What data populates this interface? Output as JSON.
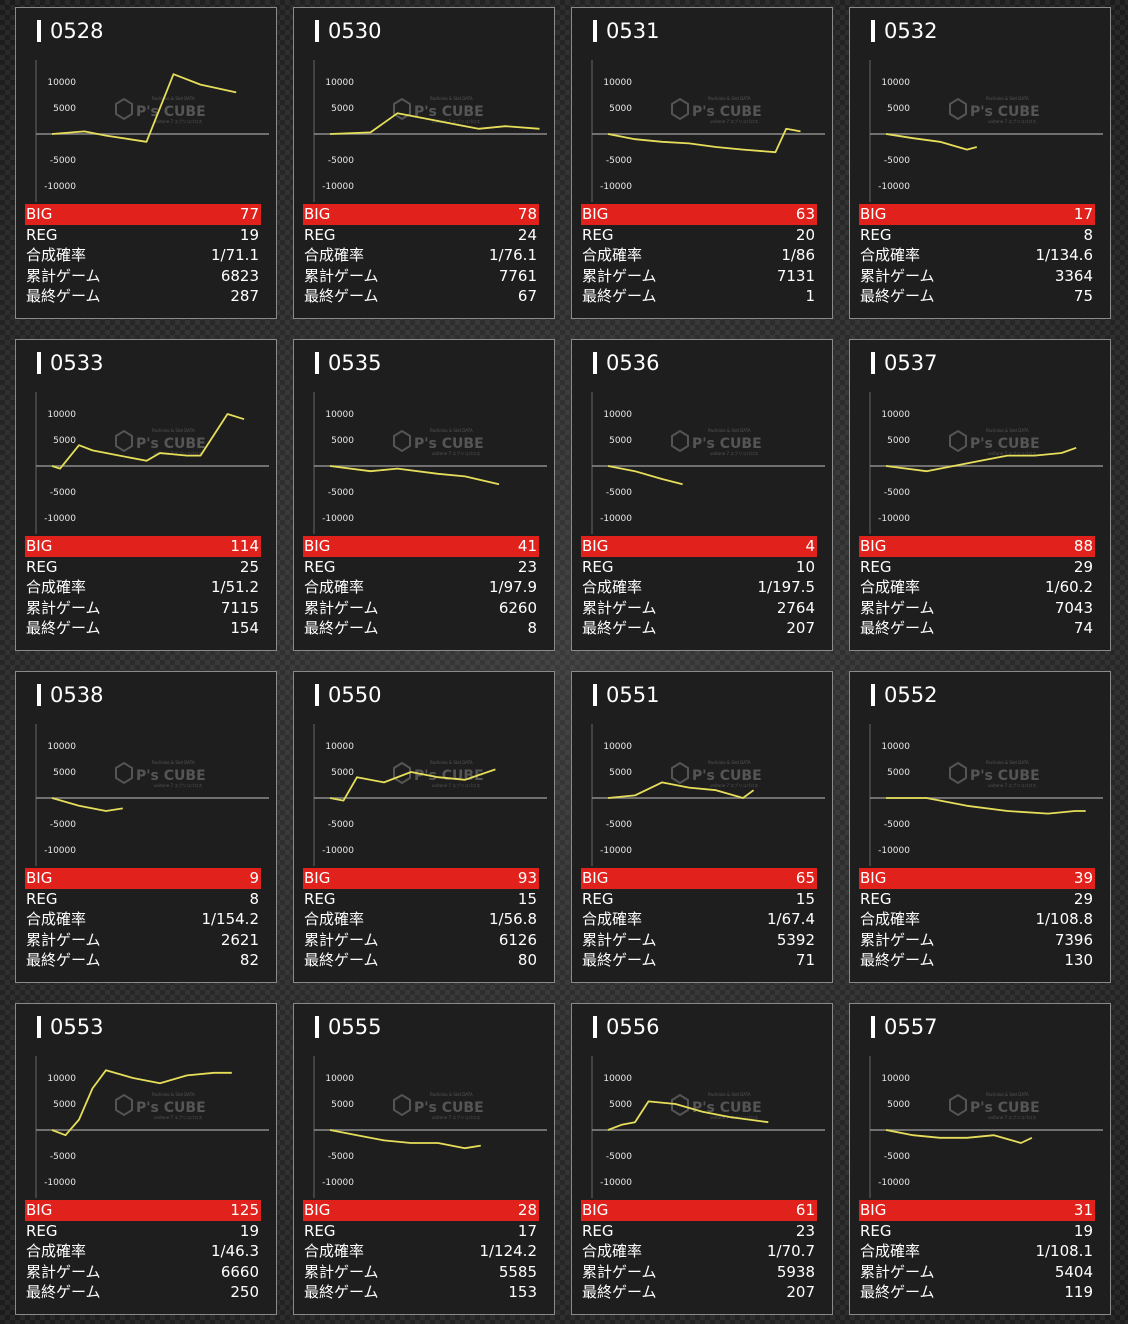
{
  "labels": {
    "big": "BIG",
    "reg": "REG",
    "prob": "合成確率",
    "total": "累計ゲーム",
    "last": "最終ゲーム"
  },
  "yticks": [
    "10000",
    "5000",
    "-5000",
    "-10000"
  ],
  "watermark": {
    "title": "P's CUBE",
    "top": "Pachinko & Slot DATA",
    "bottom": "unitone 7 エブリコパロス"
  },
  "colors": {
    "line": "#e6de5a",
    "big_bar": "#e1211b"
  },
  "machines": [
    {
      "id": "0528",
      "big": "77",
      "reg": "19",
      "prob": "1/71.1",
      "total": "6823",
      "last": "287"
    },
    {
      "id": "0530",
      "big": "78",
      "reg": "24",
      "prob": "1/76.1",
      "total": "7761",
      "last": "67"
    },
    {
      "id": "0531",
      "big": "63",
      "reg": "20",
      "prob": "1/86",
      "total": "7131",
      "last": "1"
    },
    {
      "id": "0532",
      "big": "17",
      "reg": "8",
      "prob": "1/134.6",
      "total": "3364",
      "last": "75"
    },
    {
      "id": "0533",
      "big": "114",
      "reg": "25",
      "prob": "1/51.2",
      "total": "7115",
      "last": "154"
    },
    {
      "id": "0535",
      "big": "41",
      "reg": "23",
      "prob": "1/97.9",
      "total": "6260",
      "last": "8"
    },
    {
      "id": "0536",
      "big": "4",
      "reg": "10",
      "prob": "1/197.5",
      "total": "2764",
      "last": "207"
    },
    {
      "id": "0537",
      "big": "88",
      "reg": "29",
      "prob": "1/60.2",
      "total": "7043",
      "last": "74"
    },
    {
      "id": "0538",
      "big": "9",
      "reg": "8",
      "prob": "1/154.2",
      "total": "2621",
      "last": "82"
    },
    {
      "id": "0550",
      "big": "93",
      "reg": "15",
      "prob": "1/56.8",
      "total": "6126",
      "last": "80"
    },
    {
      "id": "0551",
      "big": "65",
      "reg": "15",
      "prob": "1/67.4",
      "total": "5392",
      "last": "71"
    },
    {
      "id": "0552",
      "big": "39",
      "reg": "29",
      "prob": "1/108.8",
      "total": "7396",
      "last": "130"
    },
    {
      "id": "0553",
      "big": "125",
      "reg": "19",
      "prob": "1/46.3",
      "total": "6660",
      "last": "250"
    },
    {
      "id": "0555",
      "big": "28",
      "reg": "17",
      "prob": "1/124.2",
      "total": "5585",
      "last": "153"
    },
    {
      "id": "0556",
      "big": "61",
      "reg": "23",
      "prob": "1/70.7",
      "total": "5938",
      "last": "207"
    },
    {
      "id": "0557",
      "big": "31",
      "reg": "19",
      "prob": "1/108.1",
      "total": "5404",
      "last": "119"
    }
  ],
  "chart_data": [
    {
      "type": "line",
      "title": "0528",
      "ylim": [
        -13000,
        13000
      ],
      "x": [
        0,
        1200,
        2000,
        3500,
        4500,
        5500,
        6823
      ],
      "y": [
        0,
        500,
        -300,
        -1500,
        11500,
        9500,
        8000
      ]
    },
    {
      "type": "line",
      "title": "0530",
      "ylim": [
        -13000,
        13000
      ],
      "x": [
        0,
        1500,
        2500,
        3500,
        4500,
        5500,
        6500,
        7761
      ],
      "y": [
        0,
        300,
        4000,
        3000,
        2000,
        1000,
        1500,
        1000
      ]
    },
    {
      "type": "line",
      "title": "0531",
      "ylim": [
        -13000,
        13000
      ],
      "x": [
        0,
        1000,
        2000,
        3000,
        4000,
        5000,
        6200,
        6600,
        7131
      ],
      "y": [
        0,
        -1000,
        -1500,
        -1800,
        -2500,
        -3000,
        -3500,
        1000,
        500
      ]
    },
    {
      "type": "line",
      "title": "0532",
      "ylim": [
        -13000,
        13000
      ],
      "x": [
        0,
        1000,
        2000,
        3000,
        3364
      ],
      "y": [
        0,
        -800,
        -1500,
        -3000,
        -2500
      ]
    },
    {
      "type": "line",
      "title": "0533",
      "ylim": [
        -13000,
        13000
      ],
      "x": [
        0,
        300,
        1000,
        1500,
        2500,
        3500,
        4000,
        5000,
        5500,
        6500,
        7115
      ],
      "y": [
        0,
        -500,
        4000,
        3000,
        2000,
        1000,
        2500,
        2000,
        2000,
        10000,
        9000
      ]
    },
    {
      "type": "line",
      "title": "0535",
      "ylim": [
        -13000,
        13000
      ],
      "x": [
        0,
        1500,
        2500,
        4000,
        5000,
        6260
      ],
      "y": [
        0,
        -1000,
        -500,
        -1500,
        -2000,
        -3500
      ]
    },
    {
      "type": "line",
      "title": "0536",
      "ylim": [
        -13000,
        13000
      ],
      "x": [
        0,
        1000,
        2000,
        2764
      ],
      "y": [
        0,
        -1000,
        -2500,
        -3500
      ]
    },
    {
      "type": "line",
      "title": "0537",
      "ylim": [
        -13000,
        13000
      ],
      "x": [
        0,
        1500,
        2500,
        3500,
        4500,
        5500,
        6500,
        7043
      ],
      "y": [
        0,
        -1000,
        0,
        1000,
        2000,
        2000,
        2500,
        3500
      ]
    },
    {
      "type": "line",
      "title": "0538",
      "ylim": [
        -13000,
        13000
      ],
      "x": [
        0,
        1000,
        2000,
        2621
      ],
      "y": [
        0,
        -1500,
        -2500,
        -2000
      ]
    },
    {
      "type": "line",
      "title": "0550",
      "ylim": [
        -13000,
        13000
      ],
      "x": [
        0,
        500,
        1000,
        2000,
        3000,
        4000,
        5000,
        6126
      ],
      "y": [
        0,
        -500,
        4000,
        3000,
        5000,
        4000,
        3500,
        5500
      ]
    },
    {
      "type": "line",
      "title": "0551",
      "ylim": [
        -13000,
        13000
      ],
      "x": [
        0,
        1000,
        2000,
        3000,
        4000,
        5000,
        5392
      ],
      "y": [
        0,
        500,
        3000,
        2000,
        1500,
        0,
        1500
      ]
    },
    {
      "type": "line",
      "title": "0552",
      "ylim": [
        -13000,
        13000
      ],
      "x": [
        0,
        1500,
        3000,
        4500,
        6000,
        7000,
        7396
      ],
      "y": [
        0,
        0,
        -1500,
        -2500,
        -3000,
        -2500,
        -2500
      ]
    },
    {
      "type": "line",
      "title": "0553",
      "ylim": [
        -13000,
        13000
      ],
      "x": [
        0,
        500,
        1000,
        1500,
        2000,
        3000,
        4000,
        5000,
        6000,
        6660
      ],
      "y": [
        0,
        -1000,
        2000,
        8000,
        11500,
        10000,
        9000,
        10500,
        11000,
        11000
      ]
    },
    {
      "type": "line",
      "title": "0555",
      "ylim": [
        -13000,
        13000
      ],
      "x": [
        0,
        1000,
        2000,
        3000,
        4000,
        5000,
        5585
      ],
      "y": [
        0,
        -1000,
        -2000,
        -2500,
        -2500,
        -3500,
        -3000
      ]
    },
    {
      "type": "line",
      "title": "0556",
      "ylim": [
        -13000,
        13000
      ],
      "x": [
        0,
        500,
        1000,
        1500,
        2500,
        3500,
        4500,
        5938
      ],
      "y": [
        0,
        1000,
        1500,
        5500,
        5000,
        3500,
        2500,
        1500
      ]
    },
    {
      "type": "line",
      "title": "0557",
      "ylim": [
        -13000,
        13000
      ],
      "x": [
        0,
        1000,
        2000,
        3000,
        4000,
        5000,
        5404
      ],
      "y": [
        0,
        -1000,
        -1500,
        -1500,
        -1000,
        -2500,
        -1500
      ]
    }
  ]
}
